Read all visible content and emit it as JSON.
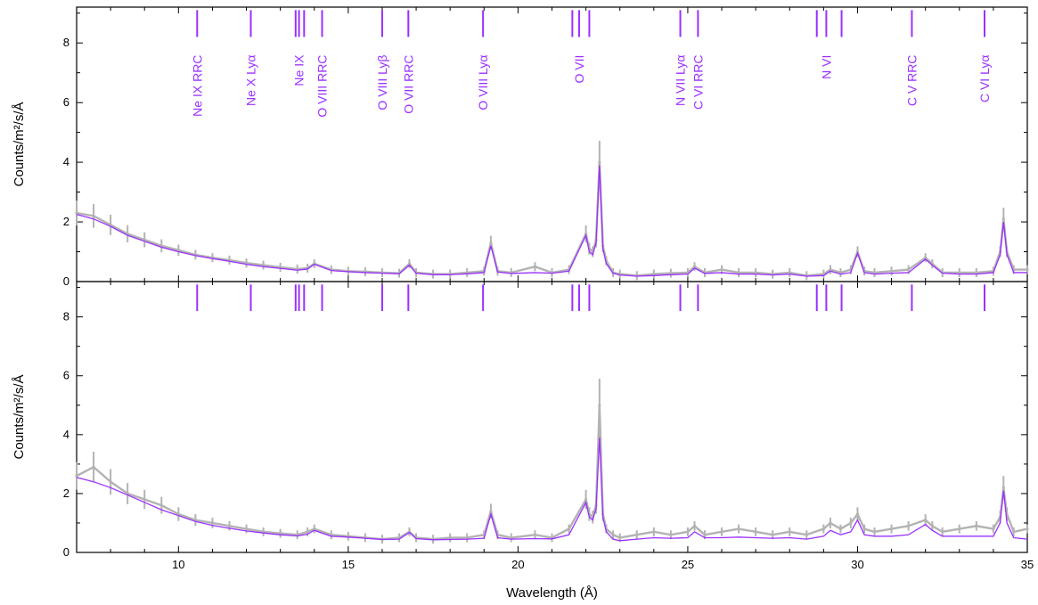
{
  "chart_data": [
    {
      "type": "line",
      "panel": "top",
      "xlim": [
        7,
        35
      ],
      "ylim": [
        0,
        9.2
      ],
      "xticks": [
        10,
        15,
        20,
        25,
        30,
        35
      ],
      "yticks": [
        0,
        2,
        4,
        6,
        8
      ],
      "ylabel": "Counts/m²/s/Å",
      "xlabel": "",
      "grid": false,
      "line_ids": [
        {
          "x": 10.55,
          "label": "Ne IX RRC"
        },
        {
          "x": 12.13,
          "label": "Ne X Lyα"
        },
        {
          "x": 13.45,
          "label": ""
        },
        {
          "x": 13.55,
          "label": "Ne IX"
        },
        {
          "x": 13.7,
          "label": ""
        },
        {
          "x": 14.23,
          "label": "O VIII RRC"
        },
        {
          "x": 16.0,
          "label": "O VIII Lyβ"
        },
        {
          "x": 16.77,
          "label": "O VII RRC"
        },
        {
          "x": 18.97,
          "label": "O VIII Lyα"
        },
        {
          "x": 21.6,
          "label": ""
        },
        {
          "x": 21.8,
          "label": "O VII"
        },
        {
          "x": 22.1,
          "label": ""
        },
        {
          "x": 24.78,
          "label": "N VII Lyα"
        },
        {
          "x": 25.3,
          "label": "C VI RRC"
        },
        {
          "x": 28.8,
          "label": ""
        },
        {
          "x": 29.08,
          "label": "N VI"
        },
        {
          "x": 29.53,
          "label": ""
        },
        {
          "x": 31.6,
          "label": "C V RRC"
        },
        {
          "x": 33.74,
          "label": "C VI Lyα"
        }
      ],
      "series": [
        {
          "role": "data",
          "color": "#b3b3b3",
          "x": [
            7.0,
            7.5,
            8.0,
            8.5,
            9.0,
            9.5,
            10.0,
            10.5,
            11.0,
            11.5,
            12.0,
            12.5,
            13.0,
            13.5,
            13.8,
            14.0,
            14.5,
            15.0,
            15.5,
            16.0,
            16.5,
            16.8,
            17.0,
            17.5,
            18.0,
            18.5,
            19.0,
            19.2,
            19.4,
            19.8,
            20.5,
            21.0,
            21.5,
            22.0,
            22.1,
            22.2,
            22.3,
            22.4,
            22.5,
            22.6,
            22.8,
            23.0,
            23.5,
            24.0,
            24.5,
            25.0,
            25.2,
            25.5,
            26.0,
            26.5,
            27.0,
            27.5,
            28.0,
            28.5,
            29.0,
            29.2,
            29.5,
            29.8,
            30.0,
            30.2,
            30.5,
            31.0,
            31.5,
            32.0,
            32.2,
            32.5,
            33.0,
            33.5,
            34.0,
            34.2,
            34.3,
            34.4,
            34.6,
            35.0
          ],
          "y": [
            2.3,
            2.2,
            1.9,
            1.6,
            1.4,
            1.2,
            1.05,
            0.9,
            0.8,
            0.72,
            0.62,
            0.55,
            0.48,
            0.42,
            0.45,
            0.6,
            0.4,
            0.35,
            0.33,
            0.3,
            0.28,
            0.6,
            0.3,
            0.25,
            0.25,
            0.3,
            0.35,
            1.3,
            0.35,
            0.3,
            0.5,
            0.3,
            0.4,
            1.6,
            1.1,
            1.0,
            1.4,
            4.0,
            1.2,
            0.7,
            0.3,
            0.25,
            0.2,
            0.25,
            0.28,
            0.3,
            0.5,
            0.3,
            0.4,
            0.3,
            0.3,
            0.25,
            0.3,
            0.2,
            0.25,
            0.4,
            0.3,
            0.4,
            1.0,
            0.35,
            0.3,
            0.35,
            0.4,
            0.8,
            0.6,
            0.3,
            0.3,
            0.3,
            0.35,
            1.0,
            2.1,
            1.0,
            0.4,
            0.4
          ]
        },
        {
          "role": "model",
          "color": "#9b30ff",
          "x": [
            7.0,
            7.5,
            8.0,
            8.5,
            9.0,
            9.5,
            10.0,
            10.5,
            11.0,
            11.5,
            12.0,
            12.5,
            13.0,
            13.5,
            13.8,
            14.0,
            14.5,
            15.0,
            15.5,
            16.0,
            16.5,
            16.8,
            17.0,
            17.5,
            18.0,
            18.5,
            19.0,
            19.2,
            19.4,
            19.8,
            20.5,
            21.0,
            21.5,
            22.0,
            22.1,
            22.2,
            22.3,
            22.4,
            22.5,
            22.6,
            22.8,
            23.0,
            23.5,
            24.0,
            24.5,
            25.0,
            25.2,
            25.5,
            26.0,
            26.5,
            27.0,
            27.5,
            28.0,
            28.5,
            29.0,
            29.2,
            29.5,
            29.8,
            30.0,
            30.2,
            30.5,
            31.0,
            31.5,
            32.0,
            32.2,
            32.5,
            33.0,
            33.5,
            34.0,
            34.2,
            34.3,
            34.4,
            34.6,
            35.0
          ],
          "y": [
            2.25,
            2.1,
            1.85,
            1.55,
            1.35,
            1.15,
            1.0,
            0.87,
            0.77,
            0.68,
            0.58,
            0.5,
            0.44,
            0.38,
            0.42,
            0.58,
            0.37,
            0.33,
            0.3,
            0.28,
            0.26,
            0.55,
            0.28,
            0.23,
            0.23,
            0.26,
            0.3,
            1.2,
            0.32,
            0.27,
            0.3,
            0.28,
            0.35,
            1.55,
            1.0,
            0.9,
            1.3,
            3.9,
            1.1,
            0.6,
            0.28,
            0.22,
            0.18,
            0.2,
            0.23,
            0.25,
            0.45,
            0.27,
            0.3,
            0.25,
            0.25,
            0.22,
            0.25,
            0.18,
            0.2,
            0.35,
            0.25,
            0.3,
            0.95,
            0.3,
            0.25,
            0.28,
            0.3,
            0.75,
            0.55,
            0.28,
            0.25,
            0.25,
            0.3,
            0.9,
            2.0,
            0.9,
            0.3,
            0.3
          ]
        }
      ]
    },
    {
      "type": "line",
      "panel": "bottom",
      "xlim": [
        7,
        35
      ],
      "ylim": [
        0,
        9.2
      ],
      "xticks": [
        10,
        15,
        20,
        25,
        30,
        35
      ],
      "yticks": [
        0,
        2,
        4,
        6,
        8
      ],
      "ylabel": "Counts/m²/s/Å",
      "xlabel": "Wavelength (Å)",
      "grid": false,
      "line_ids_x": [
        10.55,
        12.13,
        13.45,
        13.55,
        13.7,
        14.23,
        16.0,
        16.77,
        18.97,
        21.6,
        21.8,
        22.1,
        24.78,
        25.3,
        28.8,
        29.08,
        29.53,
        31.6,
        33.74
      ],
      "series": [
        {
          "role": "data",
          "color": "#b3b3b3",
          "x": [
            7.0,
            7.5,
            8.0,
            8.5,
            9.0,
            9.5,
            10.0,
            10.5,
            11.0,
            11.5,
            12.0,
            12.5,
            13.0,
            13.5,
            13.8,
            14.0,
            14.5,
            15.0,
            15.5,
            16.0,
            16.5,
            16.8,
            17.0,
            17.5,
            18.0,
            18.5,
            19.0,
            19.2,
            19.4,
            19.8,
            20.5,
            21.0,
            21.5,
            22.0,
            22.1,
            22.2,
            22.3,
            22.4,
            22.5,
            22.6,
            22.8,
            23.0,
            23.5,
            24.0,
            24.5,
            25.0,
            25.2,
            25.5,
            26.0,
            26.5,
            27.0,
            27.5,
            28.0,
            28.5,
            29.0,
            29.2,
            29.5,
            29.8,
            30.0,
            30.2,
            30.5,
            31.0,
            31.5,
            32.0,
            32.2,
            32.5,
            33.0,
            33.5,
            34.0,
            34.2,
            34.3,
            34.4,
            34.6,
            35.0
          ],
          "y": [
            2.6,
            2.9,
            2.4,
            2.0,
            1.8,
            1.6,
            1.3,
            1.1,
            1.0,
            0.9,
            0.8,
            0.7,
            0.65,
            0.6,
            0.7,
            0.8,
            0.6,
            0.55,
            0.5,
            0.45,
            0.5,
            0.7,
            0.5,
            0.45,
            0.5,
            0.5,
            0.6,
            1.4,
            0.6,
            0.5,
            0.6,
            0.5,
            0.8,
            1.8,
            1.3,
            1.2,
            1.6,
            5.0,
            1.3,
            0.8,
            0.6,
            0.5,
            0.6,
            0.7,
            0.6,
            0.7,
            0.9,
            0.6,
            0.7,
            0.8,
            0.7,
            0.6,
            0.7,
            0.6,
            0.8,
            1.0,
            0.8,
            1.0,
            1.3,
            0.8,
            0.7,
            0.8,
            0.9,
            1.1,
            0.9,
            0.7,
            0.8,
            0.9,
            0.8,
            1.2,
            2.2,
            1.3,
            0.7,
            0.8
          ]
        },
        {
          "role": "model",
          "color": "#9b30ff",
          "x": [
            7.0,
            7.5,
            8.0,
            8.5,
            9.0,
            9.5,
            10.0,
            10.5,
            11.0,
            11.5,
            12.0,
            12.5,
            13.0,
            13.5,
            13.8,
            14.0,
            14.5,
            15.0,
            15.5,
            16.0,
            16.5,
            16.8,
            17.0,
            17.5,
            18.0,
            18.5,
            19.0,
            19.2,
            19.4,
            19.8,
            20.5,
            21.0,
            21.5,
            22.0,
            22.1,
            22.2,
            22.3,
            22.4,
            22.5,
            22.6,
            22.8,
            23.0,
            23.5,
            24.0,
            24.5,
            25.0,
            25.2,
            25.5,
            26.0,
            26.5,
            27.0,
            27.5,
            28.0,
            28.5,
            29.0,
            29.2,
            29.5,
            29.8,
            30.0,
            30.2,
            30.5,
            31.0,
            31.5,
            32.0,
            32.2,
            32.5,
            33.0,
            33.5,
            34.0,
            34.2,
            34.3,
            34.4,
            34.6,
            35.0
          ],
          "y": [
            2.55,
            2.4,
            2.2,
            1.95,
            1.7,
            1.45,
            1.25,
            1.05,
            0.92,
            0.82,
            0.73,
            0.66,
            0.6,
            0.56,
            0.62,
            0.75,
            0.55,
            0.52,
            0.48,
            0.44,
            0.45,
            0.68,
            0.47,
            0.43,
            0.44,
            0.45,
            0.48,
            1.3,
            0.5,
            0.45,
            0.47,
            0.46,
            0.6,
            1.7,
            1.2,
            1.1,
            1.5,
            3.9,
            1.2,
            0.7,
            0.45,
            0.4,
            0.45,
            0.5,
            0.48,
            0.5,
            0.7,
            0.5,
            0.5,
            0.52,
            0.5,
            0.48,
            0.5,
            0.45,
            0.55,
            0.75,
            0.6,
            0.7,
            1.1,
            0.6,
            0.55,
            0.55,
            0.6,
            0.95,
            0.75,
            0.55,
            0.55,
            0.55,
            0.55,
            1.0,
            2.1,
            1.0,
            0.5,
            0.45
          ]
        }
      ]
    }
  ]
}
